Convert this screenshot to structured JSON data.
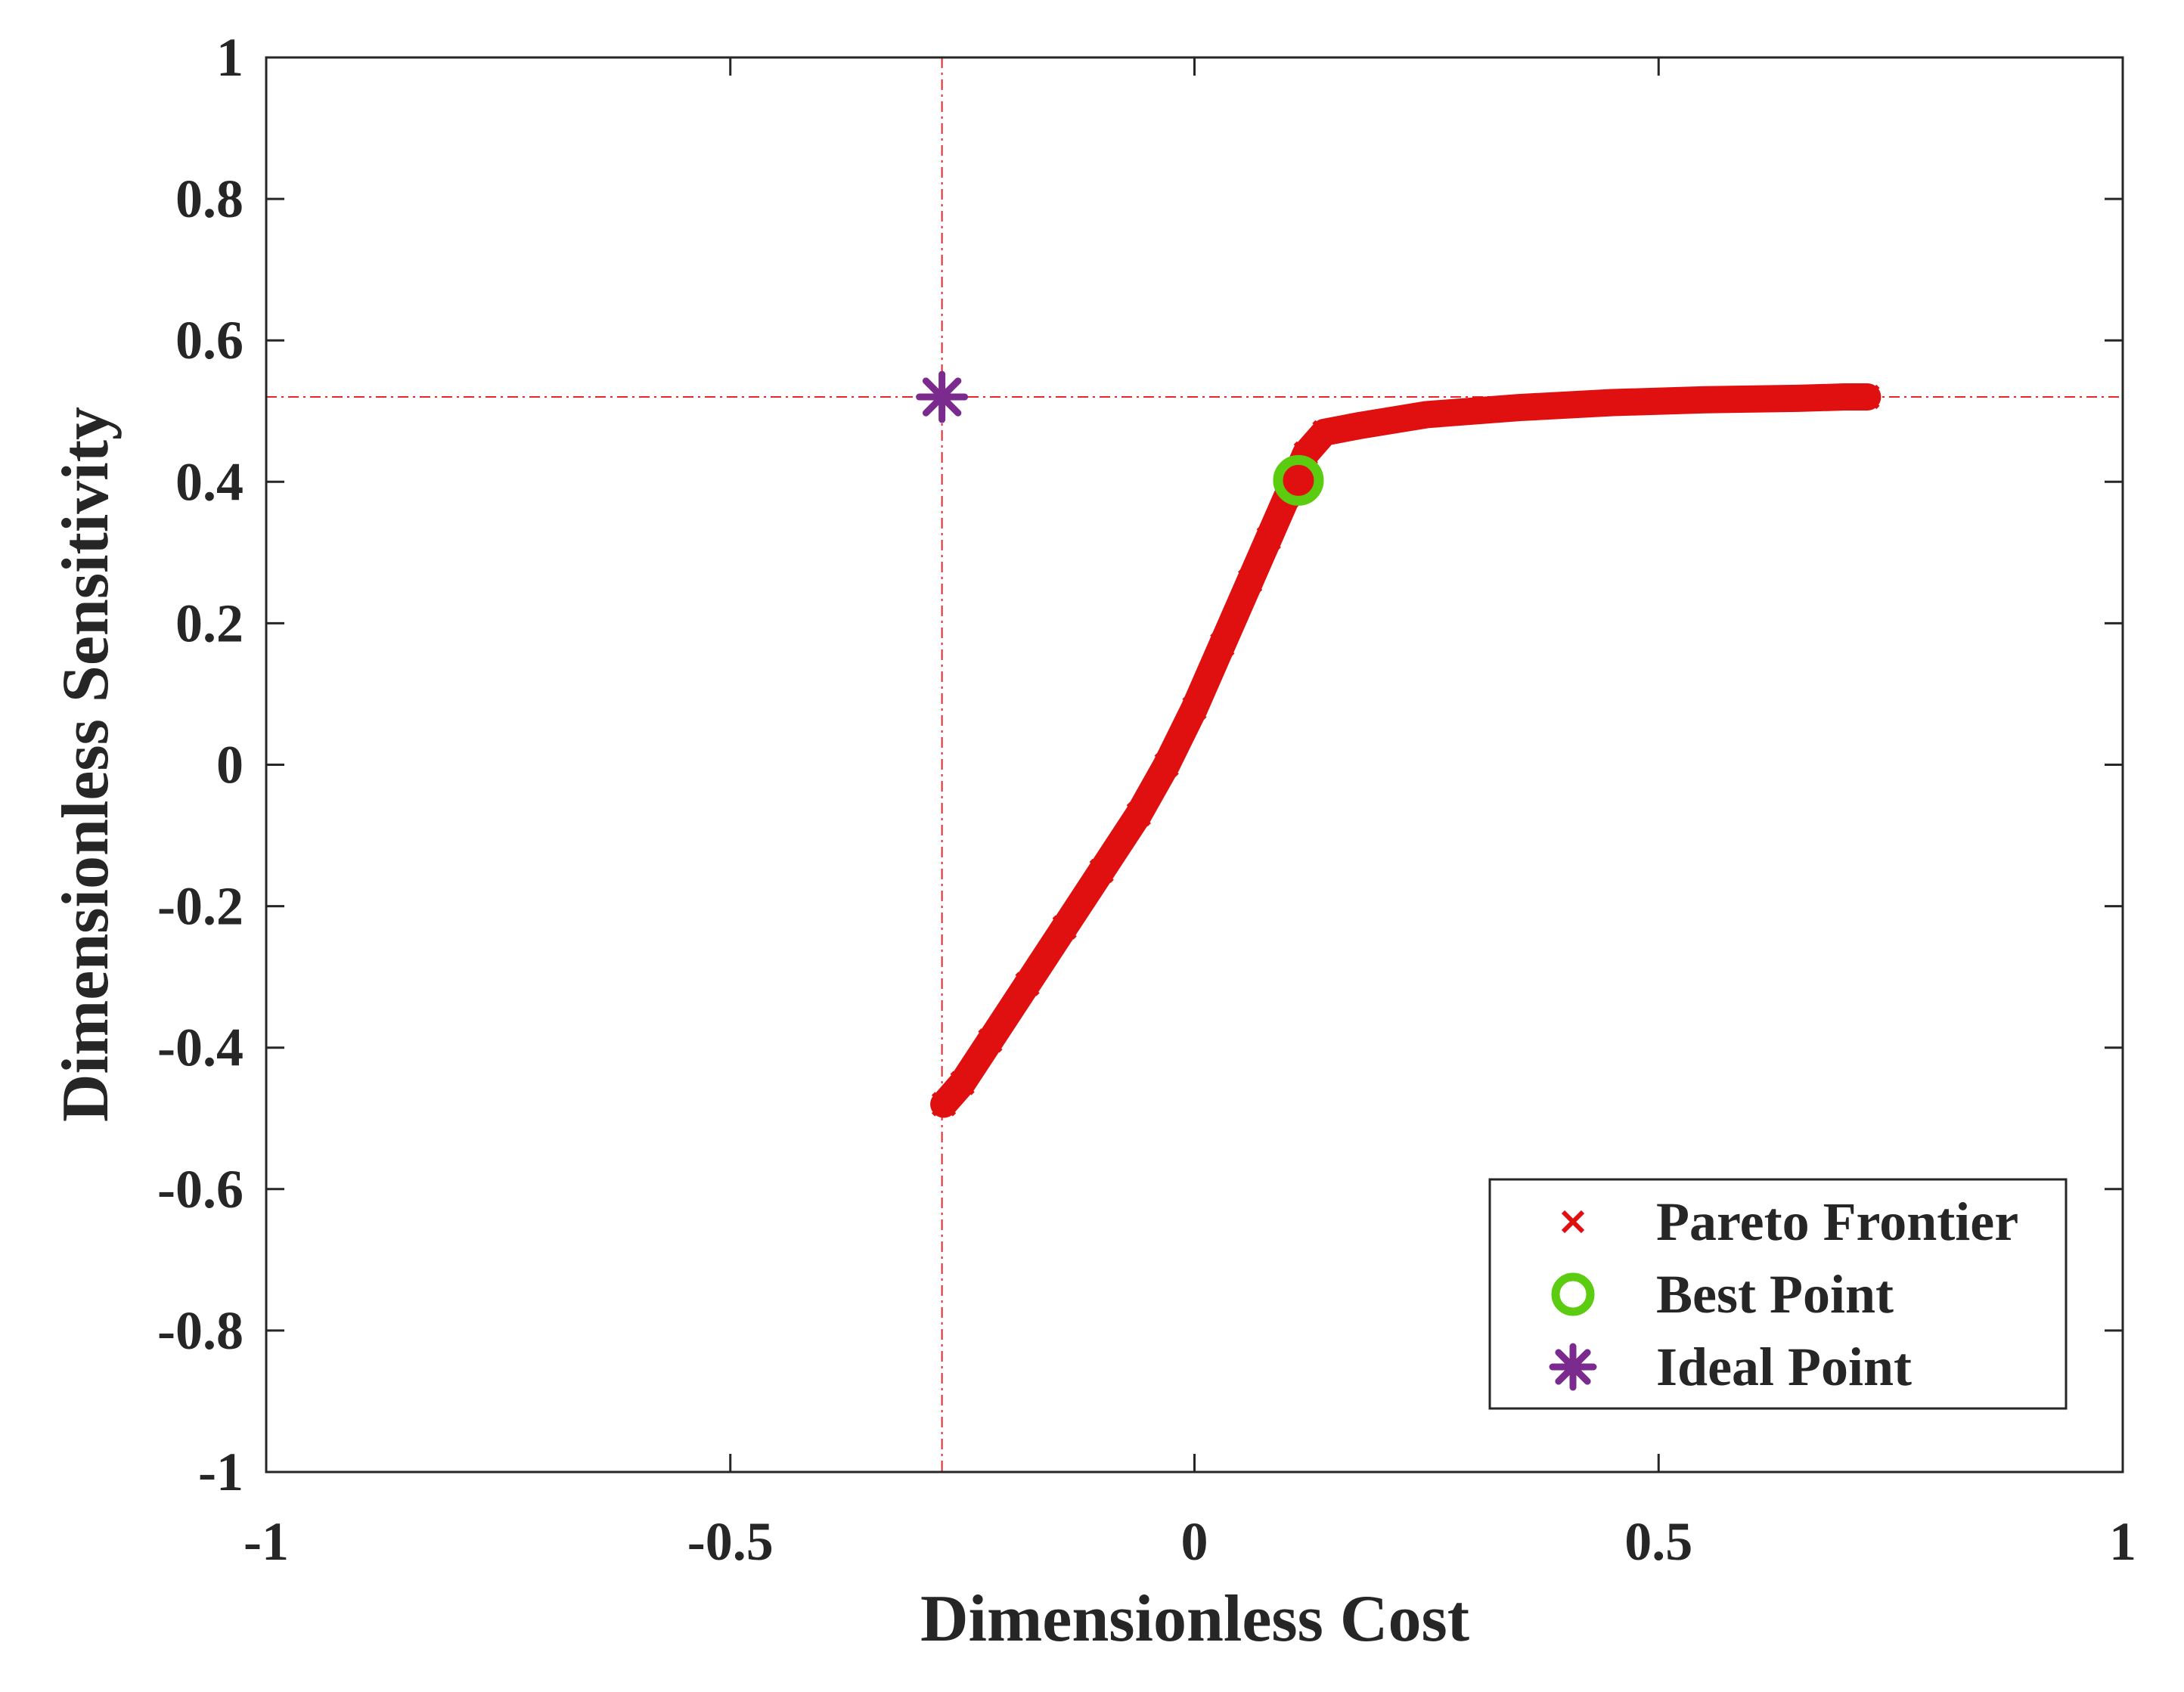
{
  "chart_data": {
    "type": "scatter",
    "title": "",
    "xlabel": "Dimensionless Cost",
    "ylabel": "Dimensionless Sensitivity",
    "xlim": [
      -1,
      1
    ],
    "ylim": [
      -1,
      1
    ],
    "xticks": [
      -1,
      -0.5,
      0,
      0.5,
      1
    ],
    "xtick_labels": [
      "-1",
      "-0.5",
      "0",
      "0.5",
      "1"
    ],
    "yticks": [
      -1,
      -0.8,
      -0.6,
      -0.4,
      -0.2,
      0,
      0.2,
      0.4,
      0.6,
      0.8,
      1
    ],
    "ytick_labels": [
      "-1",
      "-0.8",
      "-0.6",
      "-0.4",
      "-0.2",
      "0",
      "0.2",
      "0.4",
      "0.6",
      "0.8",
      "1"
    ],
    "grid": false,
    "legend_position": "bottom-right",
    "reference_lines": {
      "vertical_x": -0.272,
      "horizontal_y": 0.52,
      "color": "#e8262b",
      "style": "dash-dot"
    },
    "series": [
      {
        "name": "Pareto Frontier",
        "marker": "x",
        "color": "#e01010",
        "x": [
          -0.27,
          -0.25,
          -0.22,
          -0.18,
          -0.14,
          -0.1,
          -0.06,
          -0.03,
          0.0,
          0.03,
          0.06,
          0.08,
          0.1,
          0.12,
          0.14,
          0.18,
          0.25,
          0.35,
          0.45,
          0.55,
          0.65,
          0.7,
          0.725
        ],
        "y": [
          -0.48,
          -0.45,
          -0.39,
          -0.31,
          -0.23,
          -0.15,
          -0.07,
          0.0,
          0.08,
          0.17,
          0.26,
          0.32,
          0.38,
          0.44,
          0.47,
          0.48,
          0.495,
          0.505,
          0.512,
          0.516,
          0.518,
          0.52,
          0.52
        ]
      },
      {
        "name": "Best Point",
        "marker": "o",
        "color": "#5ccc10",
        "x": [
          0.112
        ],
        "y": [
          0.402
        ]
      },
      {
        "name": "Ideal Point",
        "marker": "*",
        "color": "#7b2a8e",
        "x": [
          -0.272
        ],
        "y": [
          0.52
        ]
      }
    ]
  }
}
